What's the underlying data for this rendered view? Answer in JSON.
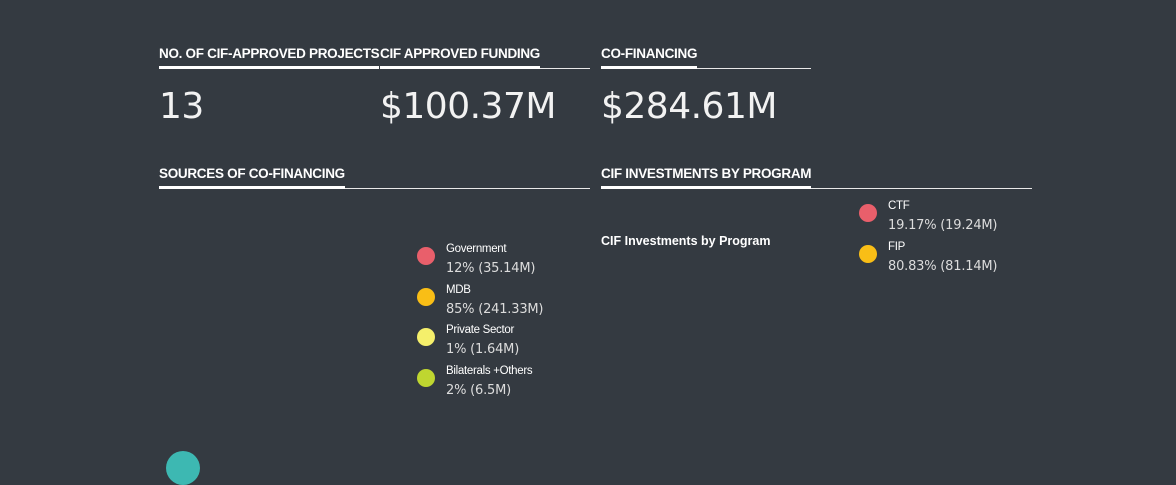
{
  "stats": [
    {
      "label": "NO. OF CIF-APPROVED PROJECTS",
      "value": "13"
    },
    {
      "label": "CIF APPROVED FUNDING",
      "value": "$100.37M"
    },
    {
      "label": "CO-FINANCING",
      "value": "$284.61M"
    }
  ],
  "sources": {
    "heading": "SOURCES OF CO-FINANCING",
    "legend": [
      {
        "label": "Government",
        "value": "12% (35.14M)",
        "color": "#e95f6b"
      },
      {
        "label": "MDB",
        "value": "85% (241.33M)",
        "color": "#f9be16"
      },
      {
        "label": "Private Sector",
        "value": "1% (1.64M)",
        "color": "#f5ef6b"
      },
      {
        "label": "Bilaterals +Others",
        "value": "2% (6.5M)",
        "color": "#bfd630"
      }
    ]
  },
  "investments": {
    "heading": "CIF INVESTMENTS BY PROGRAM",
    "chart_title": "CIF Investments by Program",
    "legend": [
      {
        "label": "CTF",
        "value": "19.17% (19.24M)",
        "color": "#e95f6b"
      },
      {
        "label": "FIP",
        "value": "80.83% (81.14M)",
        "color": "#f9be16"
      }
    ]
  },
  "accent_color": "#3db8b2"
}
